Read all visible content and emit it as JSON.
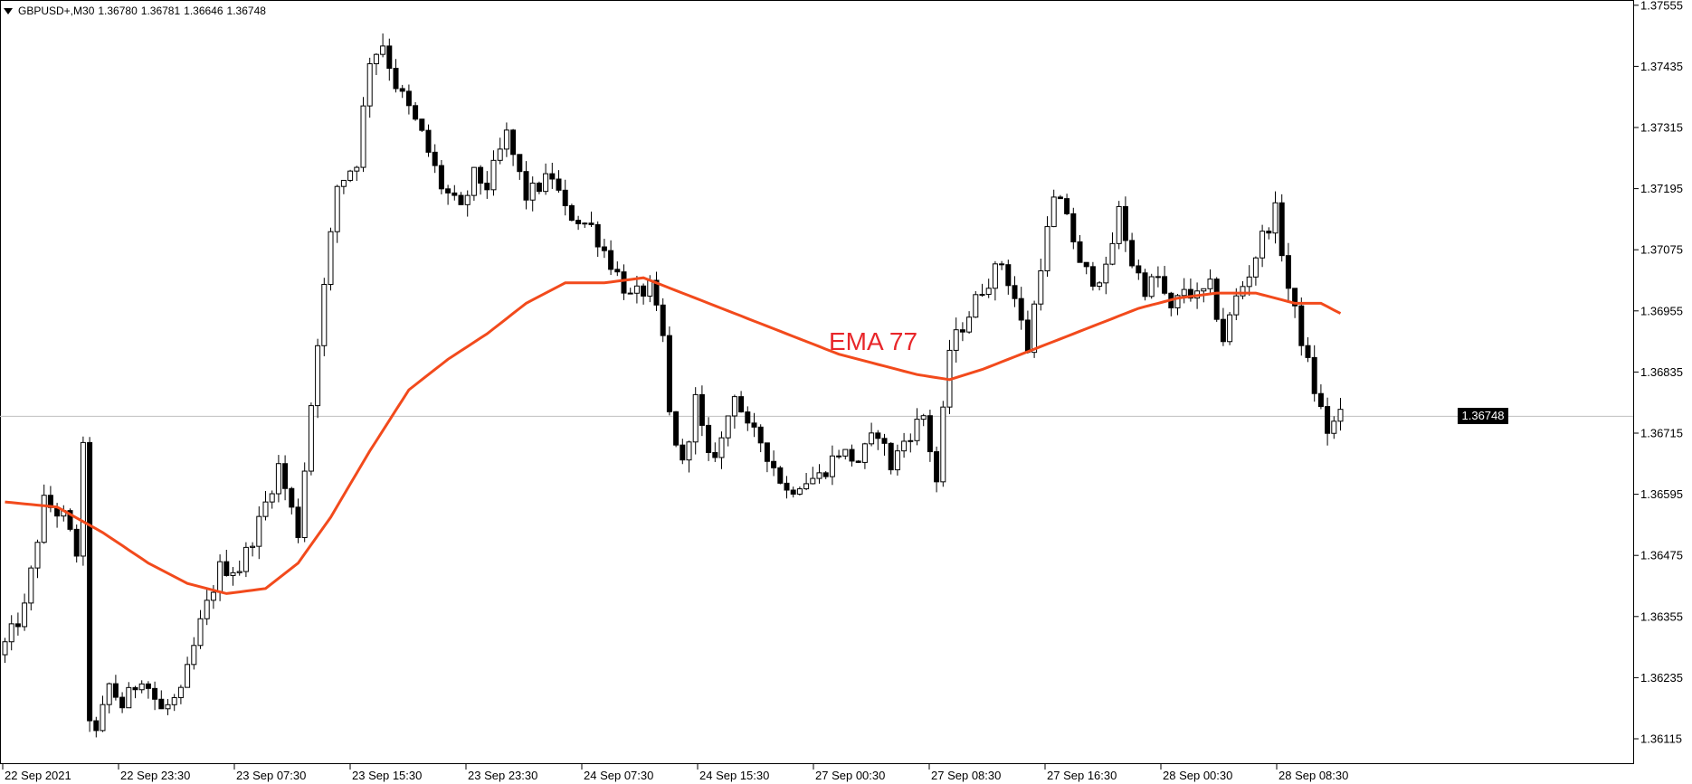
{
  "header": {
    "symbol": "GBPUSD+,M30",
    "open": "1.36780",
    "high": "1.36781",
    "low": "1.36646",
    "close": "1.36748"
  },
  "current_price_label": "1.36748",
  "indicator_label": "EMA 77",
  "colors": {
    "background": "#ffffff",
    "candle": "#000000",
    "ema": "#f24a1c",
    "ema_label": "#e8262a",
    "price_line": "#c0c0c0"
  },
  "chart_data": {
    "type": "candlestick",
    "y_ticks": [
      "1.37555",
      "1.37435",
      "1.37315",
      "1.37195",
      "1.37075",
      "1.36955",
      "1.36835",
      "1.36715",
      "1.36595",
      "1.36475",
      "1.36355",
      "1.36235",
      "1.36115"
    ],
    "ylim": [
      1.3605,
      1.376
    ],
    "x_ticks": [
      "22 Sep 2021",
      "22 Sep 23:30",
      "23 Sep 07:30",
      "23 Sep 15:30",
      "23 Sep 23:30",
      "24 Sep 07:30",
      "24 Sep 15:30",
      "27 Sep 00:30",
      "27 Sep 08:30",
      "27 Sep 16:30",
      "28 Sep 00:30",
      "28 Sep 08:30"
    ],
    "current_price": 1.36748,
    "ema_period": 77,
    "bars": 208,
    "close_anchors": [
      [
        0,
        1.363
      ],
      [
        3,
        1.3637
      ],
      [
        6,
        1.3658
      ],
      [
        9,
        1.3655
      ],
      [
        11,
        1.3648
      ],
      [
        12,
        1.3668
      ],
      [
        13,
        1.3616
      ],
      [
        14,
        1.3612
      ],
      [
        16,
        1.3622
      ],
      [
        18,
        1.3618
      ],
      [
        21,
        1.3624
      ],
      [
        24,
        1.3617
      ],
      [
        27,
        1.362
      ],
      [
        30,
        1.3634
      ],
      [
        33,
        1.3645
      ],
      [
        36,
        1.3645
      ],
      [
        39,
        1.3654
      ],
      [
        42,
        1.3665
      ],
      [
        45,
        1.3652
      ],
      [
        48,
        1.369
      ],
      [
        51,
        1.372
      ],
      [
        54,
        1.3725
      ],
      [
        55,
        1.3735
      ],
      [
        56,
        1.3745
      ],
      [
        58,
        1.3748
      ],
      [
        60,
        1.374
      ],
      [
        62,
        1.3735
      ],
      [
        64,
        1.373
      ],
      [
        67,
        1.372
      ],
      [
        70,
        1.3715
      ],
      [
        72,
        1.3722
      ],
      [
        74,
        1.372
      ],
      [
        77,
        1.373
      ],
      [
        80,
        1.3718
      ],
      [
        84,
        1.3722
      ],
      [
        86,
        1.3715
      ],
      [
        90,
        1.3712
      ],
      [
        93,
        1.3705
      ],
      [
        96,
        1.3698
      ],
      [
        99,
        1.37
      ],
      [
        101,
        1.369
      ],
      [
        102,
        1.3675
      ],
      [
        104,
        1.3665
      ],
      [
        106,
        1.3678
      ],
      [
        108,
        1.3666
      ],
      [
        110,
        1.367
      ],
      [
        112,
        1.368
      ],
      [
        114,
        1.3672
      ],
      [
        116,
        1.367
      ],
      [
        118,
        1.3665
      ],
      [
        120,
        1.366
      ],
      [
        122,
        1.3662
      ],
      [
        125,
        1.3663
      ],
      [
        128,
        1.3668
      ],
      [
        131,
        1.3666
      ],
      [
        134,
        1.3672
      ],
      [
        136,
        1.3665
      ],
      [
        138,
        1.367
      ],
      [
        141,
        1.3675
      ],
      [
        143,
        1.3662
      ],
      [
        145,
        1.3688
      ],
      [
        148,
        1.3695
      ],
      [
        150,
        1.37
      ],
      [
        153,
        1.3705
      ],
      [
        155,
        1.3698
      ],
      [
        157,
        1.3688
      ],
      [
        159,
        1.3705
      ],
      [
        161,
        1.3717
      ],
      [
        163,
        1.3715
      ],
      [
        165,
        1.3704
      ],
      [
        167,
        1.3702
      ],
      [
        169,
        1.3703
      ],
      [
        171,
        1.3715
      ],
      [
        173,
        1.3705
      ],
      [
        175,
        1.37
      ],
      [
        177,
        1.3702
      ],
      [
        179,
        1.3695
      ],
      [
        181,
        1.37
      ],
      [
        183,
        1.3698
      ],
      [
        185,
        1.37
      ],
      [
        187,
        1.369
      ],
      [
        189,
        1.3698
      ],
      [
        191,
        1.3703
      ],
      [
        193,
        1.371
      ],
      [
        195,
        1.3715
      ],
      [
        197,
        1.37
      ],
      [
        199,
        1.369
      ],
      [
        201,
        1.368
      ],
      [
        203,
        1.3672
      ],
      [
        205,
        1.36748
      ]
    ],
    "ema_anchors": [
      [
        0,
        1.3658
      ],
      [
        8,
        1.3657
      ],
      [
        15,
        1.3652
      ],
      [
        22,
        1.3646
      ],
      [
        28,
        1.3642
      ],
      [
        34,
        1.364
      ],
      [
        40,
        1.3641
      ],
      [
        45,
        1.3646
      ],
      [
        50,
        1.3655
      ],
      [
        56,
        1.3668
      ],
      [
        62,
        1.368
      ],
      [
        68,
        1.3686
      ],
      [
        74,
        1.3691
      ],
      [
        80,
        1.3697
      ],
      [
        86,
        1.3701
      ],
      [
        92,
        1.3701
      ],
      [
        98,
        1.3702
      ],
      [
        104,
        1.3699
      ],
      [
        110,
        1.3696
      ],
      [
        116,
        1.3693
      ],
      [
        122,
        1.369
      ],
      [
        128,
        1.3687
      ],
      [
        134,
        1.3685
      ],
      [
        140,
        1.3683
      ],
      [
        145,
        1.3682
      ],
      [
        150,
        1.3684
      ],
      [
        156,
        1.3687
      ],
      [
        162,
        1.369
      ],
      [
        168,
        1.3693
      ],
      [
        174,
        1.3696
      ],
      [
        180,
        1.3698
      ],
      [
        186,
        1.3699
      ],
      [
        192,
        1.3699
      ],
      [
        198,
        1.3697
      ],
      [
        202,
        1.3697
      ],
      [
        205,
        1.3695
      ]
    ]
  }
}
